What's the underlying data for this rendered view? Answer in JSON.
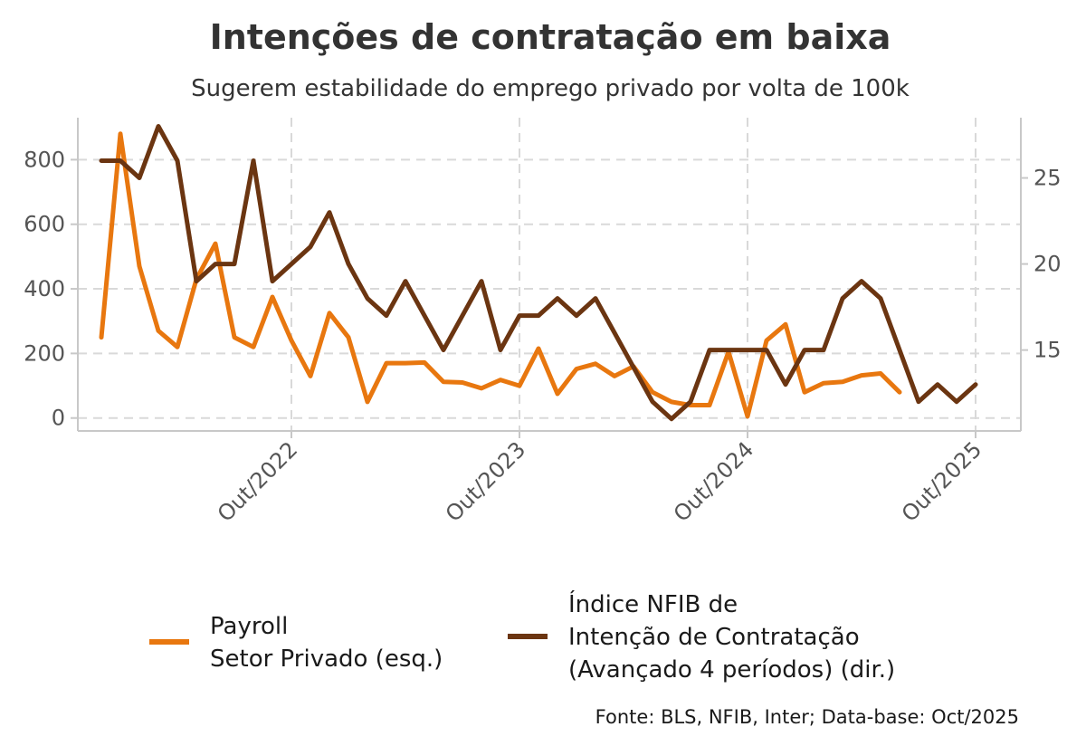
{
  "chart_data": {
    "type": "line",
    "title": "Intenções de contratação em baixa",
    "subtitle": "Sugerem estabilidade do emprego privado por volta de 100k",
    "source": "Fonte: BLS, NFIB, Inter; Data-base: Oct/2025",
    "x_ticks": [
      "Out/2022",
      "Out/2023",
      "Out/2024",
      "Out/2025"
    ],
    "y_left": {
      "lim": [
        -40,
        930
      ],
      "ticks": [
        0,
        200,
        400,
        600,
        800
      ]
    },
    "y_right": {
      "lim": [
        10.3,
        28.5
      ],
      "ticks": [
        15,
        20,
        25
      ]
    },
    "legend_position": "bottom",
    "grid": true,
    "series": [
      {
        "name_lines": [
          "Payroll",
          "Setor Privado (esq.)"
        ],
        "axis": "left",
        "color": "#E8770F",
        "start": "2021-12",
        "values": [
          250,
          880,
          470,
          270,
          220,
          430,
          540,
          250,
          220,
          375,
          240,
          130,
          325,
          250,
          50,
          170,
          170,
          172,
          112,
          110,
          92,
          118,
          100,
          215,
          75,
          152,
          168,
          130,
          160,
          80,
          50,
          40,
          40,
          205,
          5,
          240,
          290,
          80,
          108,
          112,
          132,
          138,
          80
        ]
      },
      {
        "name_lines": [
          "Índice NFIB de",
          "Intenção de Contratação",
          "(Avançado 4 períodos) (dir.)"
        ],
        "axis": "right",
        "color": "#6B3511",
        "start": "2021-12",
        "values": [
          26,
          26,
          25,
          28,
          26,
          19,
          20,
          20,
          26,
          19,
          20,
          21,
          23,
          20,
          18,
          17,
          19,
          17,
          15,
          17,
          19,
          15,
          17,
          17,
          18,
          17,
          18,
          16,
          14,
          12,
          11,
          12,
          15,
          15,
          15,
          15,
          13,
          15,
          15,
          18,
          19,
          18,
          15,
          12,
          13,
          12,
          13
        ]
      }
    ]
  }
}
